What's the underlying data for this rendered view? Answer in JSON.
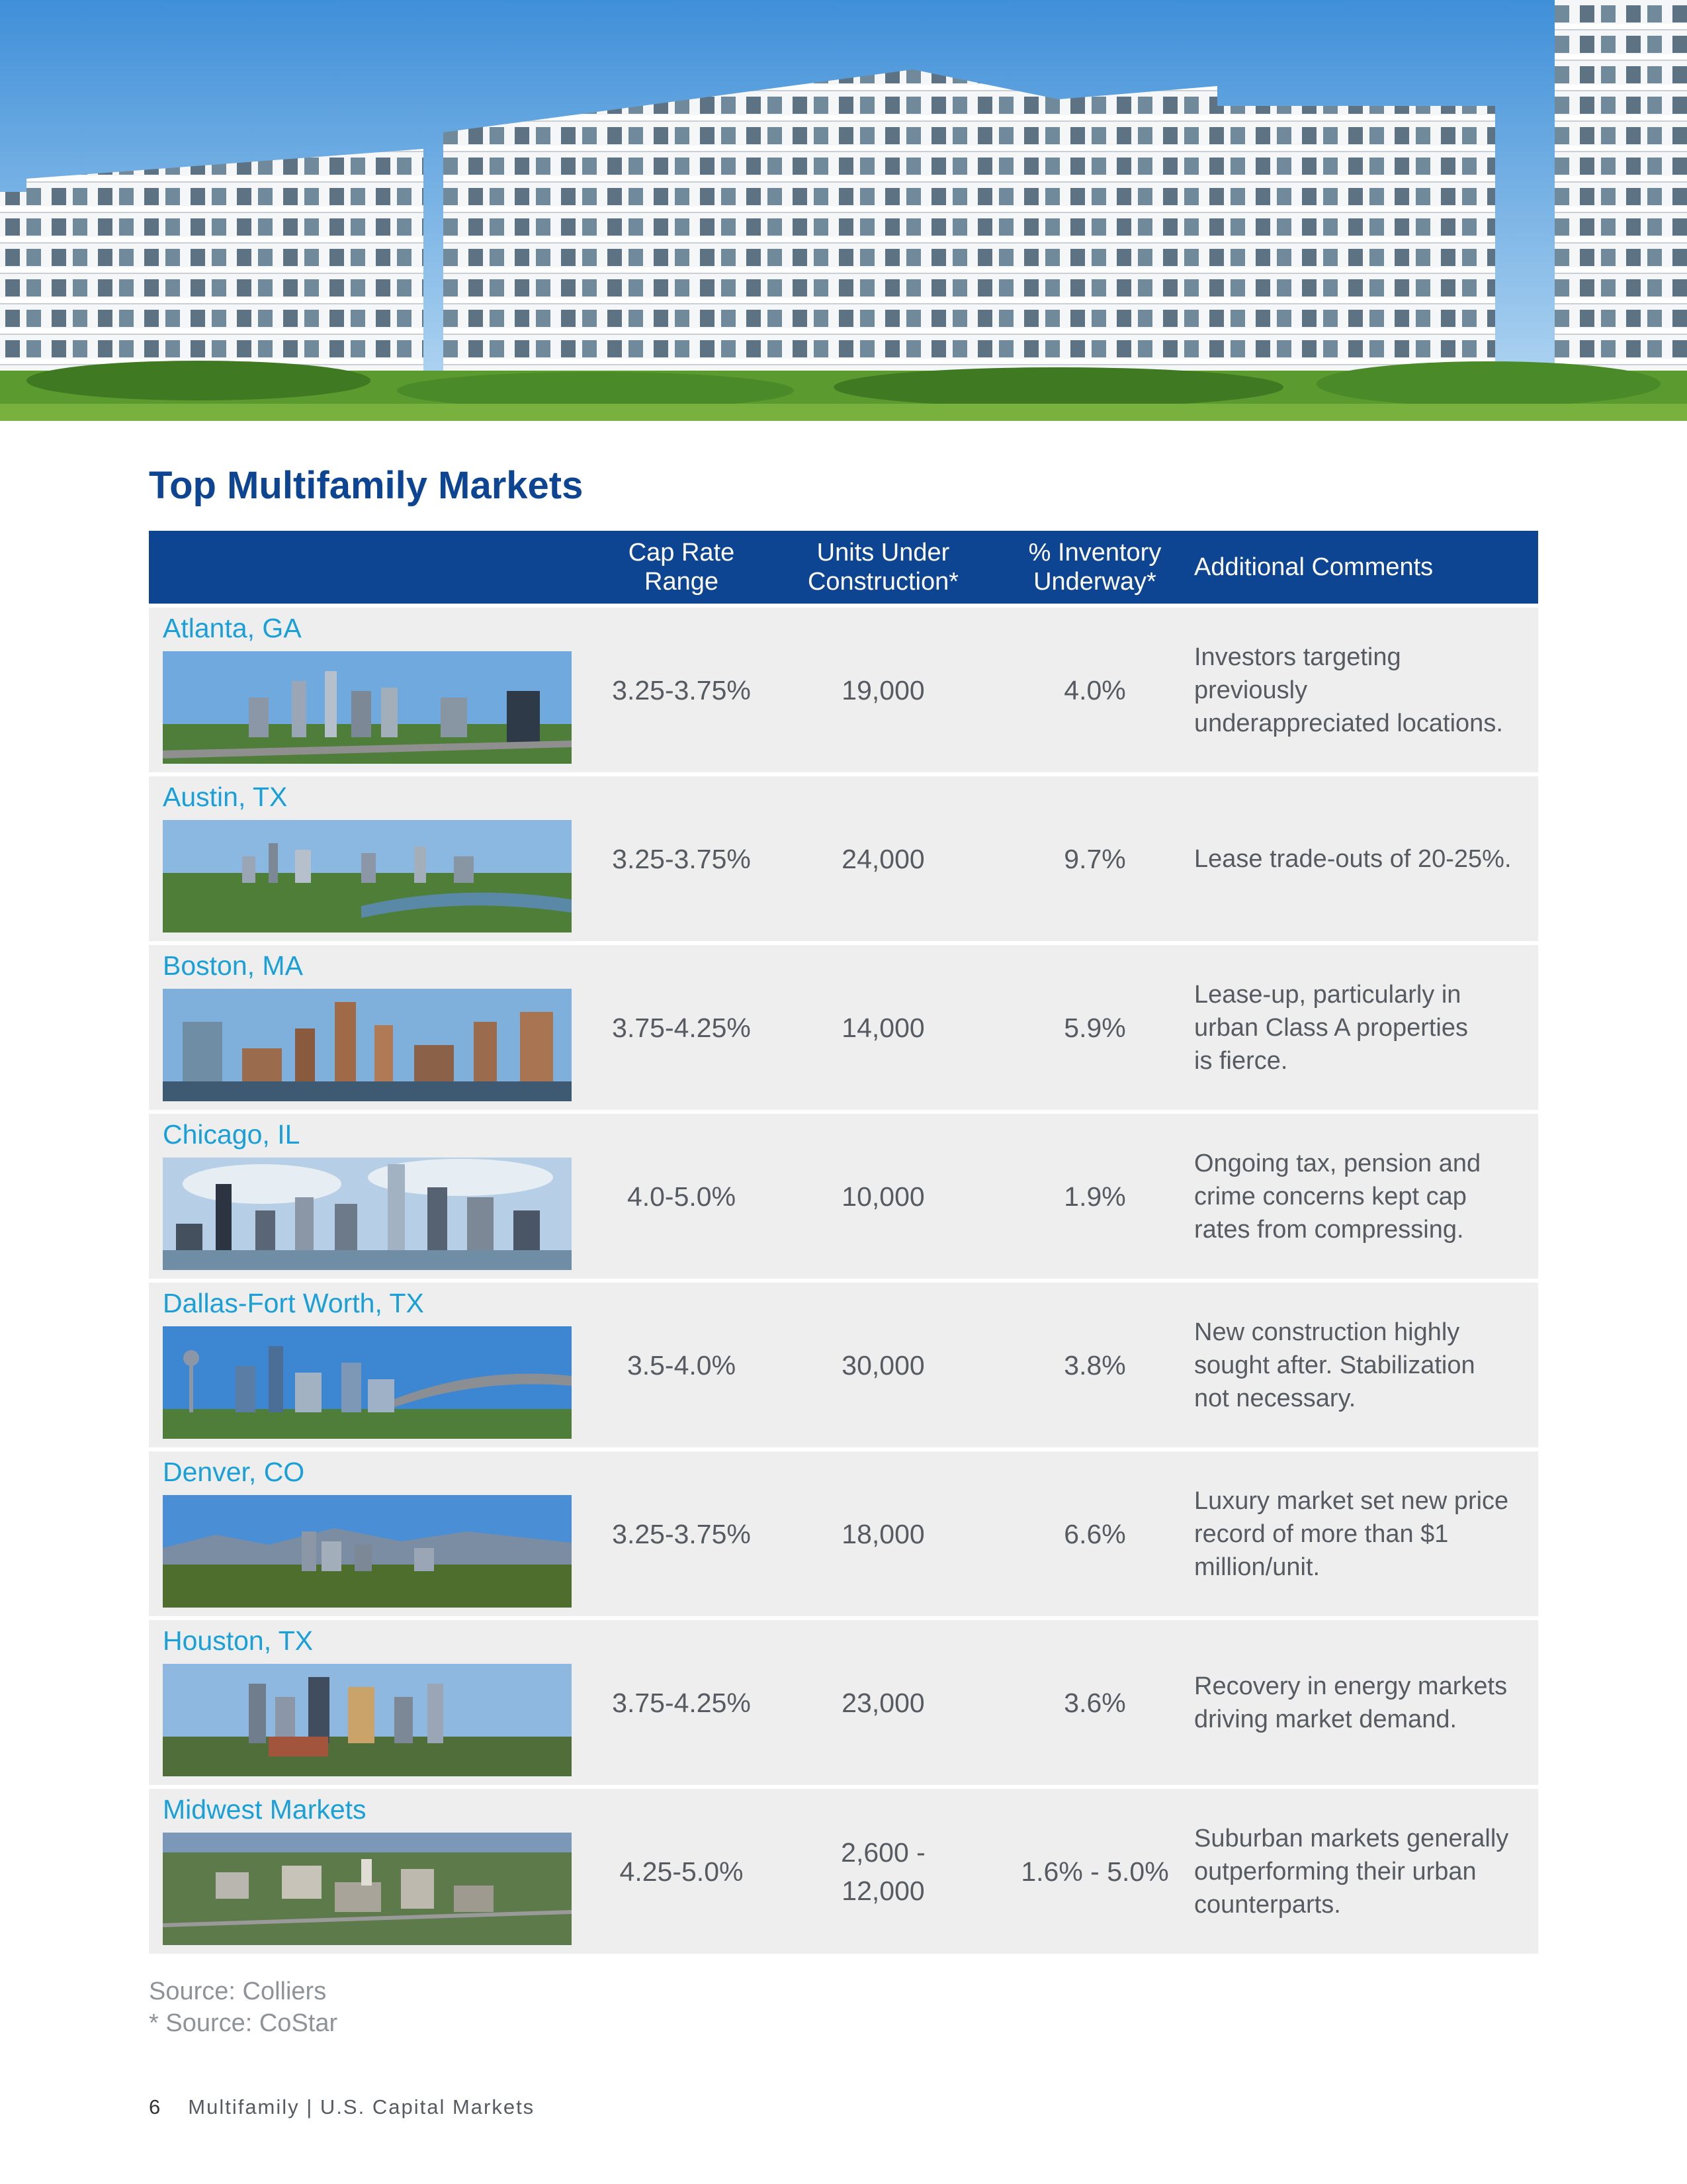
{
  "title": "Top Multifamily Markets",
  "table": {
    "headers": {
      "market": "",
      "cap_rate": "Cap Rate\nRange",
      "units": "Units Under\nConstruction*",
      "inventory": "% Inventory\nUnderway*",
      "comments": "Additional Comments"
    },
    "rows": [
      {
        "market": "Atlanta, GA",
        "cap_rate": "3.25-3.75%",
        "units": "19,000",
        "inventory": "4.0%",
        "comment": "Investors targeting\npreviously\nunderappreciated locations."
      },
      {
        "market": "Austin, TX",
        "cap_rate": "3.25-3.75%",
        "units": "24,000",
        "inventory": "9.7%",
        "comment": "Lease trade-outs of 20-25%."
      },
      {
        "market": "Boston, MA",
        "cap_rate": "3.75-4.25%",
        "units": "14,000",
        "inventory": "5.9%",
        "comment": "Lease-up, particularly in\nurban Class A properties\nis fierce."
      },
      {
        "market": "Chicago, IL",
        "cap_rate": "4.0-5.0%",
        "units": "10,000",
        "inventory": "1.9%",
        "comment": "Ongoing tax, pension and\ncrime concerns kept cap\nrates from compressing."
      },
      {
        "market": "Dallas-Fort Worth, TX",
        "cap_rate": "3.5-4.0%",
        "units": "30,000",
        "inventory": "3.8%",
        "comment": "New construction highly\nsought after. Stabilization\nnot necessary."
      },
      {
        "market": "Denver, CO",
        "cap_rate": "3.25-3.75%",
        "units": "18,000",
        "inventory": "6.6%",
        "comment": "Luxury market set new price\nrecord of more than $1\nmillion/unit."
      },
      {
        "market": "Houston, TX",
        "cap_rate": "3.75-4.25%",
        "units": "23,000",
        "inventory": "3.6%",
        "comment": "Recovery in energy markets\ndriving market demand."
      },
      {
        "market": "Midwest Markets",
        "cap_rate": "4.25-5.0%",
        "units": "2,600 -\n12,000",
        "inventory": "1.6% - 5.0%",
        "comment": "Suburban markets generally\noutperforming their urban\ncounterparts."
      }
    ]
  },
  "sources": [
    "Source: Colliers",
    "* Source: CoStar"
  ],
  "footer": {
    "page": "6",
    "text": "Multifamily | U.S. Capital Markets"
  },
  "colors": {
    "header_bg": "#0d4593",
    "title": "#0d4593",
    "market_name": "#1aa0d8",
    "row_bg": "#eeeeee"
  }
}
